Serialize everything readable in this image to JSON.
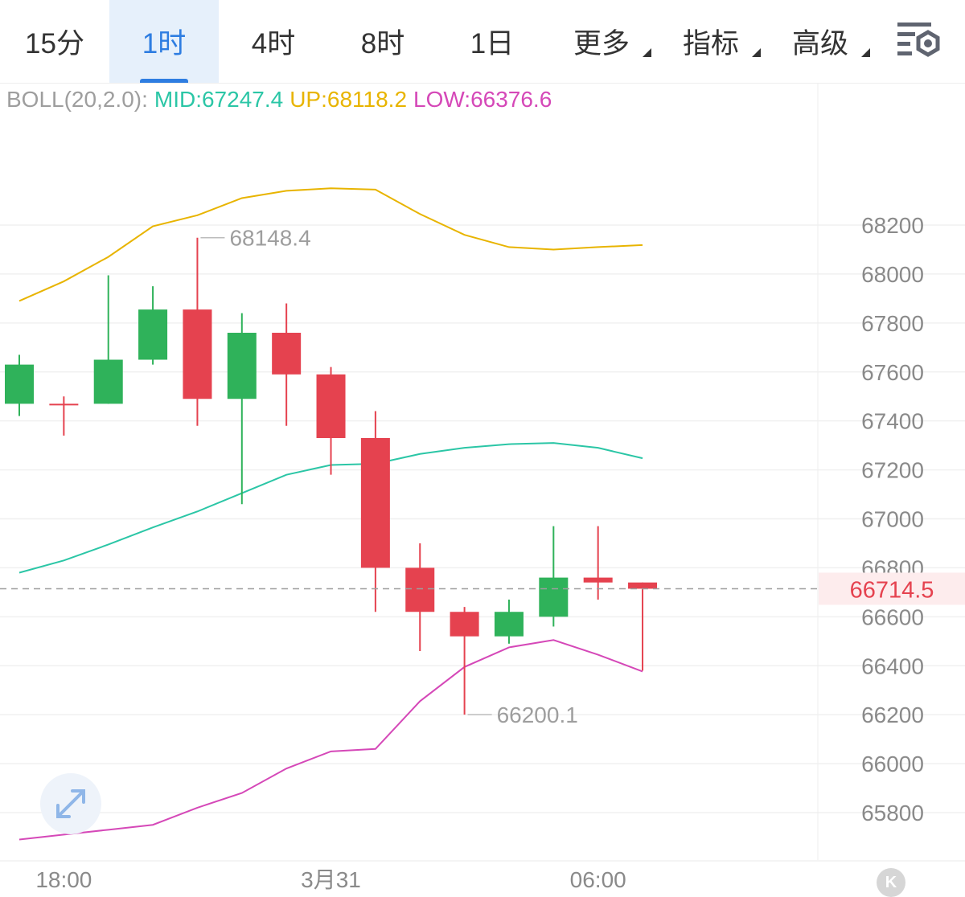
{
  "tabs": [
    {
      "label": "15分",
      "active": false,
      "caret": false
    },
    {
      "label": "1时",
      "active": true,
      "caret": false
    },
    {
      "label": "4时",
      "active": false,
      "caret": false
    },
    {
      "label": "8时",
      "active": false,
      "caret": false
    },
    {
      "label": "1日",
      "active": false,
      "caret": false
    },
    {
      "label": "更多",
      "active": false,
      "caret": true
    },
    {
      "label": "指标",
      "active": false,
      "caret": true
    },
    {
      "label": "高级",
      "active": false,
      "caret": true
    }
  ],
  "indicator": {
    "name": "BOLL(20,2.0):",
    "mid": "MID:67247.4",
    "up": "UP:68118.2",
    "low": "LOW:66376.6"
  },
  "colors": {
    "up_candle": "#2fb25a",
    "down_candle": "#e5424f",
    "mid": "#2bc6a6",
    "upper": "#e8b400",
    "lower": "#d548b8",
    "label_gray": "#9e9e9e",
    "accent": "#2e7de1"
  },
  "icons": {
    "settings": "settings-icon",
    "expand": "expand-icon",
    "k": "k-icon"
  },
  "k_button": "K",
  "chart_data": {
    "type": "candlestick",
    "ylim": [
      65680,
      68380
    ],
    "y_ticks": [
      "68200",
      "68000",
      "67800",
      "67600",
      "67400",
      "67200",
      "67000",
      "66800",
      "66600",
      "66400",
      "66200",
      "66000",
      "65800"
    ],
    "x_labels": [
      "18:00",
      "3月31",
      "06:00"
    ],
    "current_price": "66714.5",
    "annotations": {
      "high_label": "68148.4",
      "low_label": "66200.1"
    },
    "candles": [
      {
        "open": 67470,
        "close": 67630,
        "high": 67670,
        "low": 67420
      },
      {
        "open": 67470,
        "close": 67470,
        "high": 67500,
        "low": 67340
      },
      {
        "open": 67470,
        "close": 67650,
        "high": 67995,
        "low": 67470
      },
      {
        "open": 67650,
        "close": 67855,
        "high": 67950,
        "low": 67630
      },
      {
        "open": 67855,
        "close": 67490,
        "high": 68148.4,
        "low": 67380
      },
      {
        "open": 67490,
        "close": 67760,
        "high": 67840,
        "low": 67060
      },
      {
        "open": 67760,
        "close": 67590,
        "high": 67880,
        "low": 67380
      },
      {
        "open": 67590,
        "close": 67330,
        "high": 67620,
        "low": 67180
      },
      {
        "open": 67330,
        "close": 66800,
        "high": 67440,
        "low": 66620
      },
      {
        "open": 66800,
        "close": 66620,
        "high": 66900,
        "low": 66460
      },
      {
        "open": 66620,
        "close": 66520,
        "high": 66640,
        "low": 66200.1
      },
      {
        "open": 66520,
        "close": 66620,
        "high": 66670,
        "low": 66490
      },
      {
        "open": 66600,
        "close": 66760,
        "high": 66970,
        "low": 66560
      },
      {
        "open": 66760,
        "close": 66740,
        "high": 66970,
        "low": 66670
      },
      {
        "open": 66740,
        "close": 66714.5,
        "high": 66740,
        "low": 66380
      }
    ],
    "series": [
      {
        "name": "UP",
        "values": [
          67890,
          67970,
          68070,
          68195,
          68240,
          68310,
          68340,
          68350,
          68345,
          68245,
          68160,
          68110,
          68100,
          68110,
          68118.2
        ]
      },
      {
        "name": "MID",
        "values": [
          66780,
          66830,
          66895,
          66965,
          67030,
          67105,
          67180,
          67220,
          67225,
          67265,
          67290,
          67305,
          67310,
          67290,
          67247.4
        ]
      },
      {
        "name": "LOW",
        "values": [
          65690,
          65710,
          65730,
          65750,
          65820,
          65880,
          65980,
          66050,
          66060,
          66255,
          66395,
          66475,
          66505,
          66445,
          66376.6
        ]
      }
    ]
  }
}
